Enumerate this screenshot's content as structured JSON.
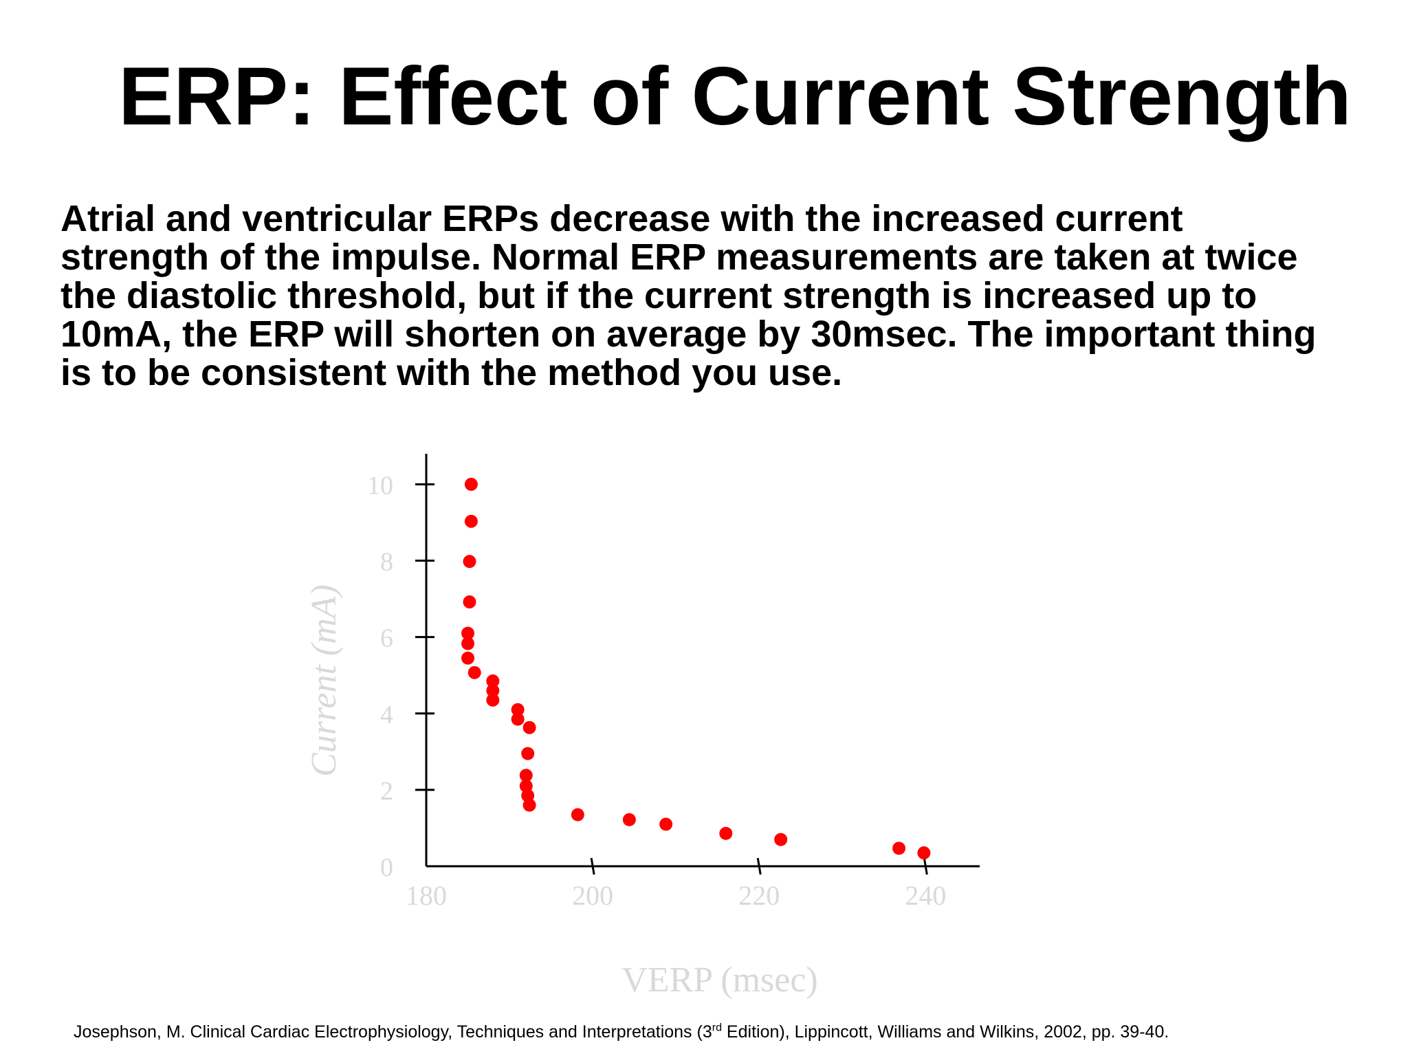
{
  "title": "ERP: Effect of Current Strength",
  "body_lines": [
    "Atrial and ventricular ERPs decrease with the increased current",
    "strength of the impulse. Normal ERP measurements are taken at twice",
    "the diastolic threshold, but if the current strength is increased up to",
    "10mA, the ERP will shorten on average by 30msec. The important thing",
    "is to be consistent with the method you use."
  ],
  "citation": {
    "before_sup": "Josephson, M. Clinical Cardiac Electrophysiology, Techniques and Interpretations (3",
    "sup": "rd",
    "after_sup": " Edition), Lippincott, Williams and Wilkins, 2002, pp. 39-40."
  },
  "chart_data": {
    "type": "scatter",
    "xlabel": "VERP (msec)",
    "ylabel": "Current (mA)",
    "xlim": [
      180,
      246.5
    ],
    "ylim": [
      0,
      10.8
    ],
    "xticks": [
      180,
      200,
      220,
      240
    ],
    "yticks": [
      0,
      2,
      4,
      6,
      8,
      10
    ],
    "point_color": "#ff0000",
    "axis_color": "#000000",
    "label_color": "#d9d9d9",
    "series": [
      {
        "x": [
          185.4,
          185.4,
          185.2,
          185.2,
          185.0,
          185.0,
          185.0,
          185.8,
          188.0,
          188.0,
          188.0,
          191.0,
          191.0,
          192.4,
          192.2,
          192.0,
          192.0,
          192.2,
          192.4,
          198.2,
          204.4,
          208.8,
          216.0,
          222.6,
          236.8,
          239.8
        ],
        "y": [
          10.0,
          9.03,
          7.98,
          6.92,
          6.1,
          5.83,
          5.45,
          5.07,
          4.85,
          4.6,
          4.35,
          4.1,
          3.85,
          3.63,
          2.95,
          2.38,
          2.1,
          1.85,
          1.6,
          1.35,
          1.22,
          1.1,
          0.86,
          0.7,
          0.47,
          0.35
        ]
      }
    ]
  }
}
